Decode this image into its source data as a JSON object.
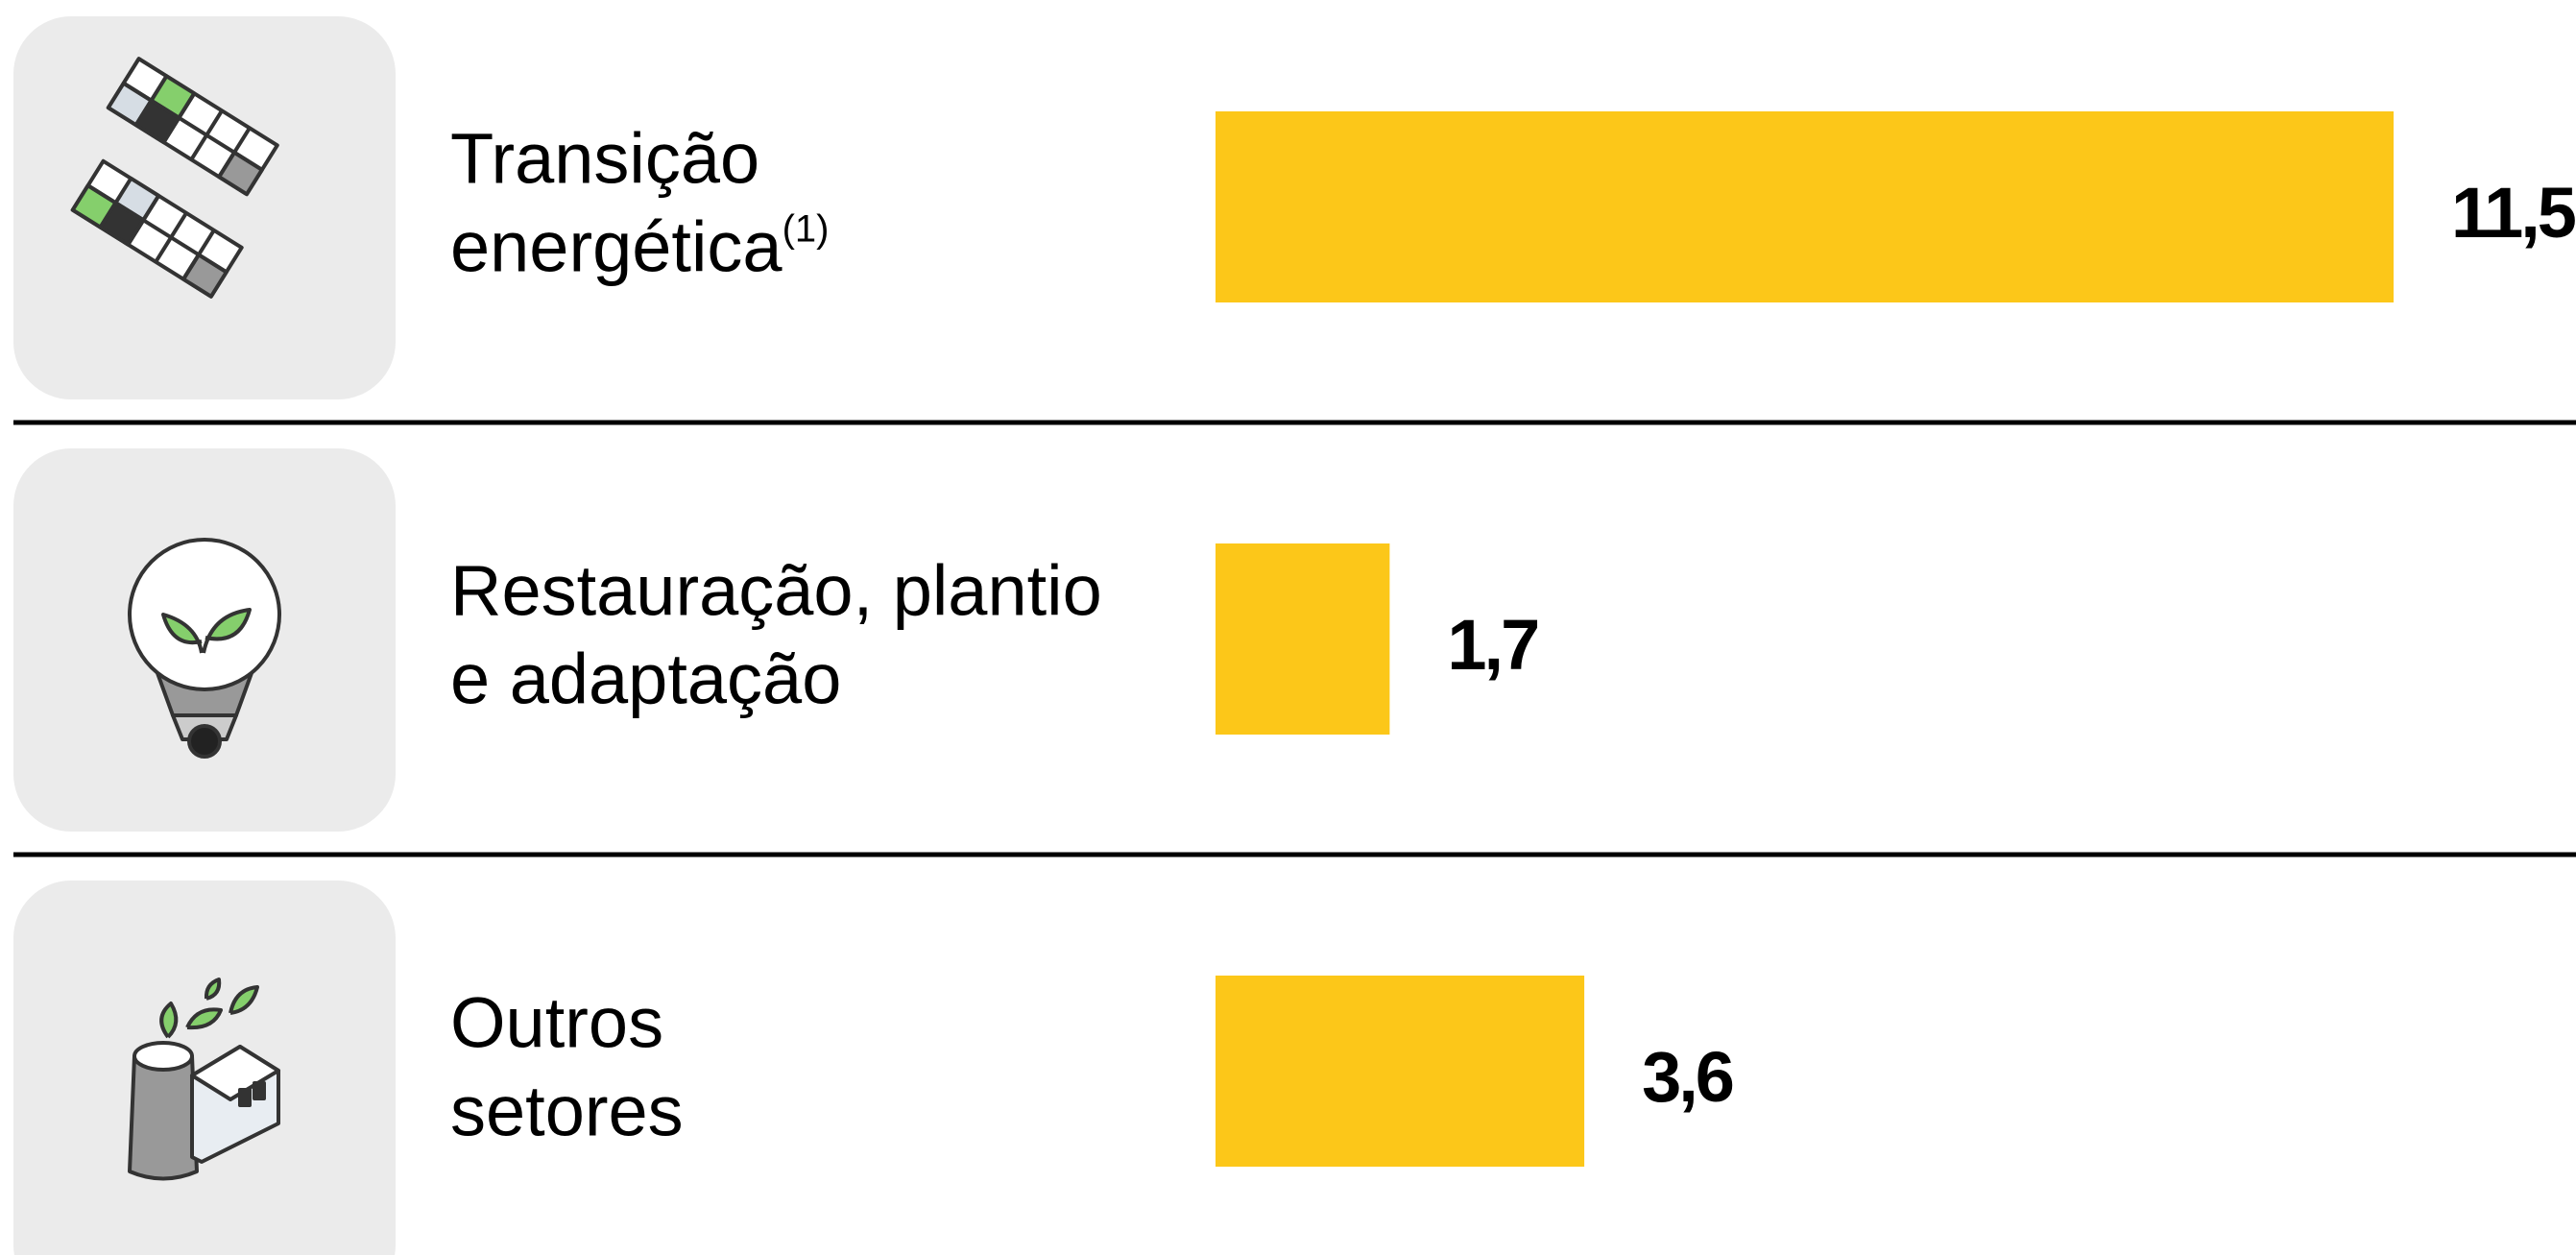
{
  "chart_data": {
    "type": "bar",
    "orientation": "horizontal",
    "categories": [
      {
        "lines": [
          "Transição",
          "energética"
        ],
        "footnote": "(1)"
      },
      {
        "lines": [
          "Restauração, plantio",
          "e adaptação"
        ]
      },
      {
        "lines": [
          "Outros",
          "setores"
        ]
      }
    ],
    "values": [
      11.5,
      1.7,
      3.6
    ],
    "value_labels": [
      "11,5",
      "1,7",
      "3,6"
    ],
    "color": "#fcc719"
  }
}
